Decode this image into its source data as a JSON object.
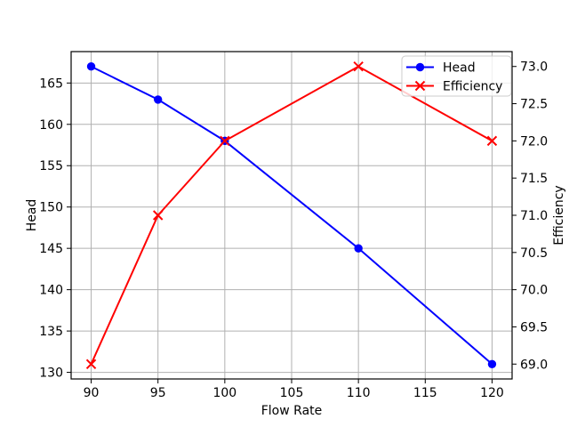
{
  "chart_data": {
    "type": "line",
    "title": "",
    "xlabel": "Flow Rate",
    "ylabel_left": "Head",
    "ylabel_right": "Efficiency",
    "x": [
      90,
      95,
      100,
      110,
      120
    ],
    "series": [
      {
        "name": "Head",
        "axis": "left",
        "color": "#0000ff",
        "marker": "circle",
        "values": [
          167,
          163,
          158,
          145,
          131
        ]
      },
      {
        "name": "Efficiency",
        "axis": "right",
        "color": "#ff0000",
        "marker": "x",
        "values": [
          69,
          71,
          72,
          73,
          72
        ]
      }
    ],
    "xlim": [
      88.5,
      121.5
    ],
    "ylim_left": [
      129.2,
      168.8
    ],
    "ylim_right": [
      68.8,
      73.2
    ],
    "xticks": [
      90,
      95,
      100,
      105,
      110,
      115,
      120
    ],
    "yticks_left": [
      130,
      135,
      140,
      145,
      150,
      155,
      160,
      165
    ],
    "yticks_right": [
      69.0,
      69.5,
      70.0,
      70.5,
      71.0,
      71.5,
      72.0,
      72.5,
      73.0
    ],
    "ytick_right_decimals": 1,
    "grid": true,
    "grid_color": "#b0b0b0",
    "background_color": "#ffffff",
    "spine_color": "#000000",
    "legend": {
      "position": "upper-right",
      "items": [
        "Head",
        "Efficiency"
      ]
    }
  }
}
